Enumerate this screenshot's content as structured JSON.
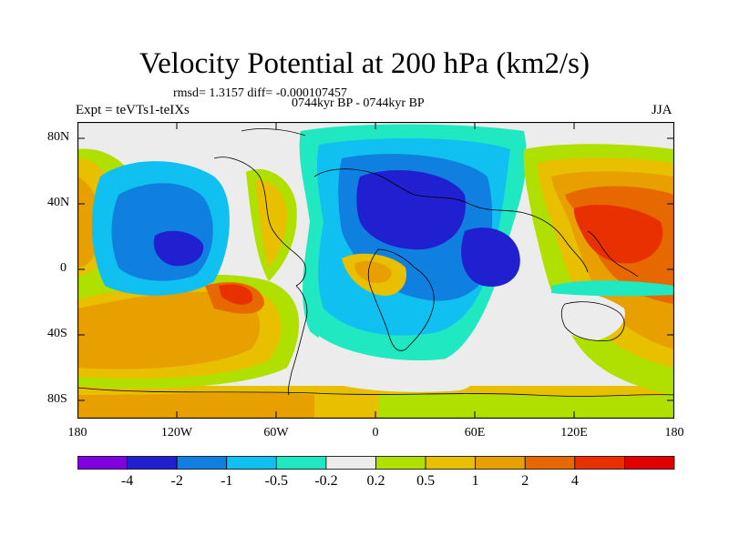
{
  "title": "Velocity Potential at 200 hPa (km2/s)",
  "stats": "rmsd= 1.3157 diff= -0.000107457",
  "period": "0744kyr BP - 0744kyr BP",
  "experiment": "Expt = teVTs1-teIXs",
  "season": "JJA",
  "lat_ticks": [
    "80N",
    "40N",
    "0",
    "40S",
    "80S"
  ],
  "lon_ticks": [
    "180",
    "120W",
    "60W",
    "0",
    "60E",
    "120E",
    "180"
  ],
  "colorbar": {
    "colors": [
      "#8000e0",
      "#2020d0",
      "#1080e0",
      "#10c0f0",
      "#20e8c0",
      "#ececec",
      "#b0e000",
      "#e8c000",
      "#e8a000",
      "#e86800",
      "#e83000",
      "#e00000"
    ],
    "labels": [
      "-4",
      "-2",
      "-1",
      "-0.5",
      "-0.2",
      "0.2",
      "0.5",
      "1",
      "2",
      "4"
    ]
  }
}
